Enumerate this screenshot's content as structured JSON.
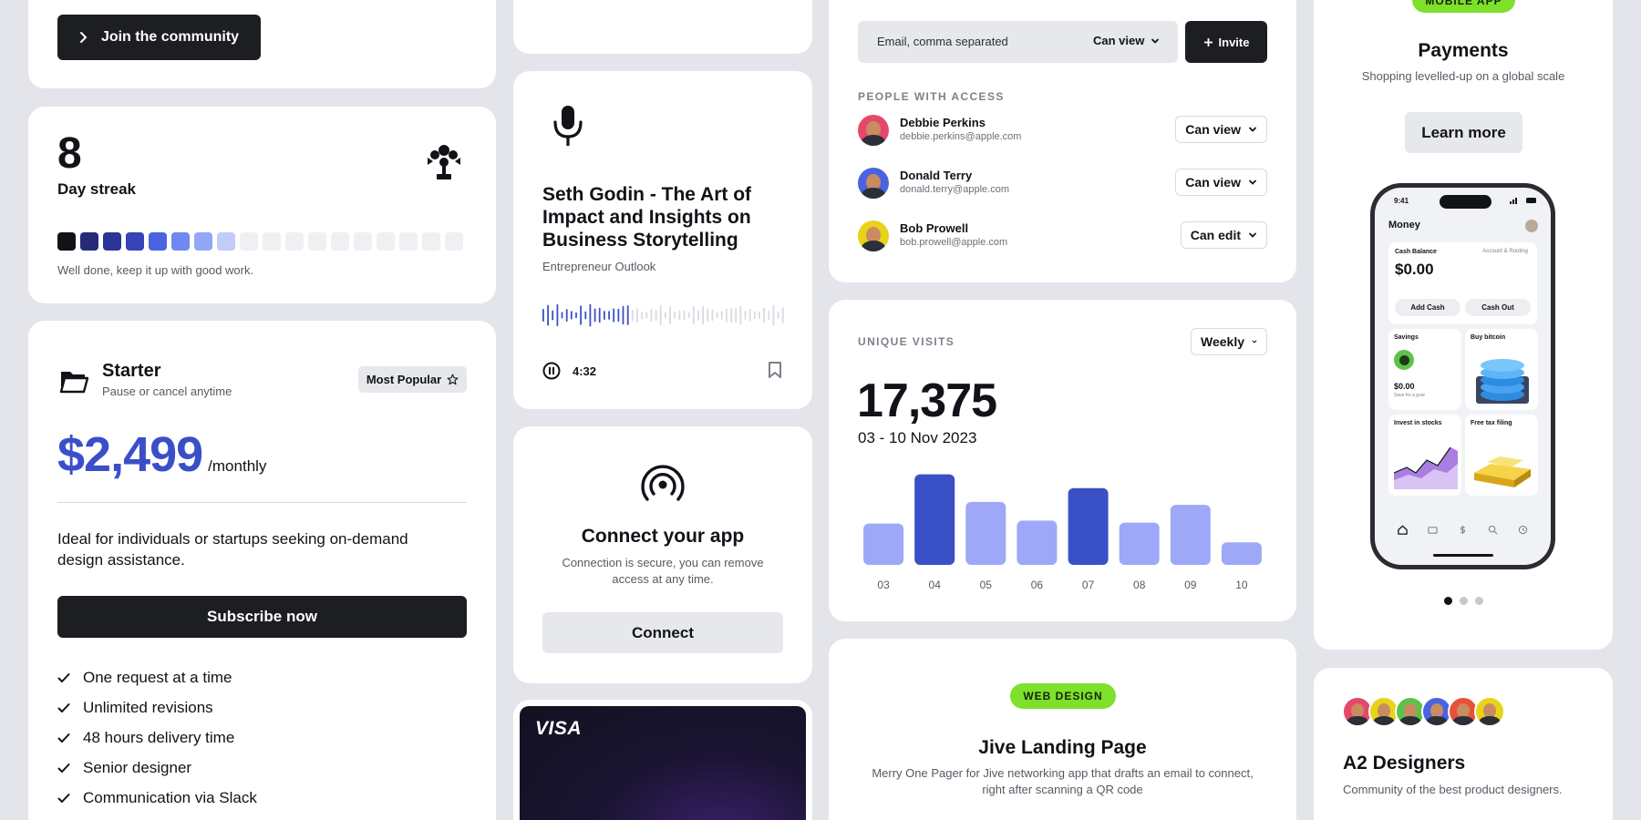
{
  "community": {
    "button_label": "Join the community"
  },
  "streak": {
    "count": "8",
    "label": "Day streak",
    "message": "Well done, keep it up with good work.",
    "cells_filled": 8,
    "cells_total": 18,
    "colors": [
      "#111318",
      "#262a78",
      "#2c3596",
      "#3743b8",
      "#4a63e0",
      "#6f88f2",
      "#93a7f5",
      "#c3cbf8"
    ]
  },
  "plan": {
    "name": "Starter",
    "subtitle": "Pause or cancel anytime",
    "badge": "Most Popular",
    "price": "$2,499",
    "period": "/monthly",
    "description": "Ideal for individuals or startups seeking on-demand design assistance.",
    "cta": "Subscribe now",
    "features": [
      "One request at a time",
      "Unlimited revisions",
      "48 hours delivery time",
      "Senior designer",
      "Communication via Slack"
    ],
    "accent": "#3a4fc7"
  },
  "podcast": {
    "title": "Seth Godin - The Art of Impact and Insights on Business Storytelling",
    "show": "Entrepreneur Outlook",
    "time": "4:32",
    "progress": 0.36
  },
  "connect": {
    "title": "Connect your app",
    "description": "Connection is secure, you can remove access at any time.",
    "button": "Connect"
  },
  "visa": {
    "brand": "VISA"
  },
  "share": {
    "input_placeholder": "Email, comma separated",
    "permission": "Can view",
    "invite_label": "Invite",
    "section_label": "PEOPLE WITH ACCESS",
    "people": [
      {
        "name": "Debbie Perkins",
        "email": "debbie.perkins@apple.com",
        "access": "Can view",
        "color": "#e5486a"
      },
      {
        "name": "Donald Terry",
        "email": "donald.terry@apple.com",
        "access": "Can view",
        "color": "#4a63e0"
      },
      {
        "name": "Bob Prowell",
        "email": "bob.prowell@apple.com",
        "access": "Can edit",
        "color": "#e8d21a"
      }
    ]
  },
  "visits": {
    "label": "UNIQUE VISITS",
    "period": "Weekly",
    "total": "17,375",
    "range": "03 - 10 Nov 2023"
  },
  "chart_data": {
    "type": "bar",
    "categories": [
      "03",
      "04",
      "05",
      "06",
      "07",
      "08",
      "09",
      "10"
    ],
    "values": [
      42,
      92,
      64,
      45,
      78,
      43,
      61,
      23
    ],
    "highlighted": [
      "04",
      "07"
    ],
    "colors": {
      "normal": "#9ea8f7",
      "highlight": "#3950c6"
    },
    "title": "",
    "xlabel": "",
    "ylabel": "",
    "ylim": [
      0,
      100
    ]
  },
  "web_design": {
    "tag": "WEB DESIGN",
    "title": "Jive Landing Page",
    "description": "Merry One Pager for Jive networking app that drafts an email to connect, right after scanning a QR code"
  },
  "mobile_app": {
    "tag": "MOBILE APP",
    "title": "Payments",
    "subtitle": "Shopping levelled-up on a global scale",
    "button": "Learn more",
    "phone": {
      "time": "9:41",
      "app_title": "Money",
      "balance_label": "Cash Balance",
      "balance_link": "Account & Routing",
      "balance": "$0.00",
      "add_cash": "Add Cash",
      "cash_out": "Cash Out",
      "tiles": [
        {
          "title": "Savings",
          "value": "$0.00",
          "sub": "Save for a goal"
        },
        {
          "title": "Buy bitcoin",
          "value": "",
          "sub": ""
        },
        {
          "title": "Invest in stocks",
          "value": "",
          "sub": ""
        },
        {
          "title": "Free tax filing",
          "value": "",
          "sub": ""
        }
      ]
    },
    "pager_total": 3,
    "pager_active": 1
  },
  "designers": {
    "title": "A2 Designers",
    "subtitle": "Community of the best product designers.",
    "avatar_colors": [
      "#e5486a",
      "#e8d21a",
      "#5ec24a",
      "#4a63e0",
      "#e8513a",
      "#e8d21a"
    ]
  }
}
